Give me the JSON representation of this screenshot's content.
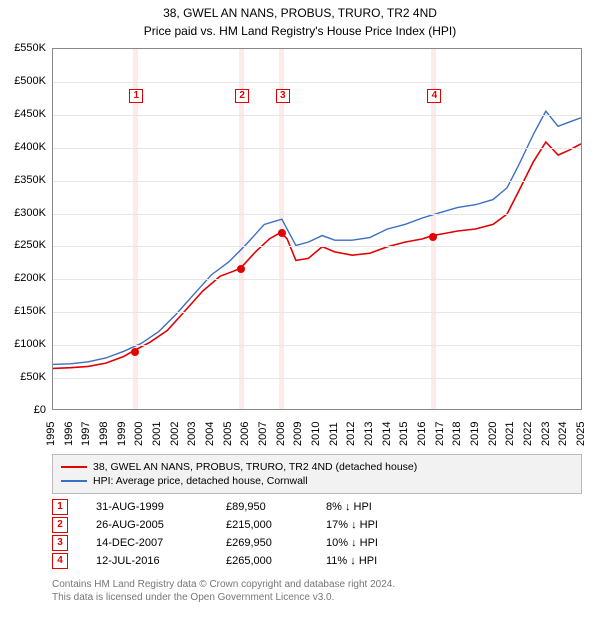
{
  "title1": "38, GWEL AN NANS, PROBUS, TRURO, TR2 4ND",
  "title2": "Price paid vs. HM Land Registry's House Price Index (HPI)",
  "chart": {
    "type": "line",
    "x_min": 1995,
    "x_max": 2025,
    "y_min": 0,
    "y_max": 550000,
    "y_ticks": [
      0,
      50000,
      100000,
      150000,
      200000,
      250000,
      300000,
      350000,
      400000,
      450000,
      500000,
      550000
    ],
    "y_tick_labels": [
      "£0",
      "£50K",
      "£100K",
      "£150K",
      "£200K",
      "£250K",
      "£300K",
      "£350K",
      "£400K",
      "£450K",
      "£500K",
      "£550K"
    ],
    "x_ticks": [
      1995,
      1996,
      1997,
      1998,
      1999,
      2000,
      2001,
      2002,
      2003,
      2004,
      2005,
      2006,
      2007,
      2008,
      2009,
      2010,
      2011,
      2012,
      2013,
      2014,
      2015,
      2016,
      2017,
      2018,
      2019,
      2020,
      2021,
      2022,
      2023,
      2024,
      2025
    ],
    "background_color": "#ffffff",
    "grid_color": "#e6e6e6",
    "border_color": "#888888",
    "label_fontsize": 11,
    "series": [
      {
        "name": "prop",
        "label": "38, GWEL AN NANS, PROBUS, TRURO, TR2 4ND (detached house)",
        "color": "#e30000",
        "line_width": 1.6,
        "data": [
          [
            1995,
            62000
          ],
          [
            1996,
            63000
          ],
          [
            1997,
            65000
          ],
          [
            1998,
            70000
          ],
          [
            1999,
            80000
          ],
          [
            1999.66,
            89950
          ],
          [
            2000.5,
            102000
          ],
          [
            2001.5,
            120000
          ],
          [
            2002.5,
            150000
          ],
          [
            2003.5,
            180000
          ],
          [
            2004.5,
            203000
          ],
          [
            2005.2,
            210000
          ],
          [
            2005.65,
            215000
          ],
          [
            2006.5,
            240000
          ],
          [
            2007.3,
            260000
          ],
          [
            2007.95,
            269950
          ],
          [
            2008.3,
            260000
          ],
          [
            2008.8,
            227000
          ],
          [
            2009.5,
            230000
          ],
          [
            2010.3,
            248000
          ],
          [
            2011.0,
            240000
          ],
          [
            2012.0,
            235000
          ],
          [
            2013.0,
            238000
          ],
          [
            2014.0,
            248000
          ],
          [
            2015.0,
            255000
          ],
          [
            2016.0,
            260000
          ],
          [
            2016.53,
            265000
          ],
          [
            2017.0,
            267000
          ],
          [
            2018.0,
            272000
          ],
          [
            2019.0,
            275000
          ],
          [
            2020.0,
            282000
          ],
          [
            2020.8,
            298000
          ],
          [
            2021.5,
            335000
          ],
          [
            2022.3,
            378000
          ],
          [
            2023.0,
            408000
          ],
          [
            2023.7,
            388000
          ],
          [
            2024.3,
            395000
          ],
          [
            2025.0,
            405000
          ]
        ]
      },
      {
        "name": "hpi",
        "label": "HPI: Average price, detached house, Cornwall",
        "color": "#3b6fc4",
        "line_width": 1.4,
        "data": [
          [
            1995,
            68000
          ],
          [
            1996,
            69000
          ],
          [
            1997,
            72000
          ],
          [
            1998,
            78000
          ],
          [
            1999,
            88000
          ],
          [
            2000,
            100000
          ],
          [
            2001,
            118000
          ],
          [
            2002,
            145000
          ],
          [
            2003,
            175000
          ],
          [
            2004,
            205000
          ],
          [
            2005,
            225000
          ],
          [
            2006,
            252000
          ],
          [
            2007,
            282000
          ],
          [
            2008.0,
            290000
          ],
          [
            2008.8,
            250000
          ],
          [
            2009.5,
            255000
          ],
          [
            2010.3,
            265000
          ],
          [
            2011.0,
            258000
          ],
          [
            2012.0,
            258000
          ],
          [
            2013.0,
            262000
          ],
          [
            2014.0,
            275000
          ],
          [
            2015.0,
            282000
          ],
          [
            2016.0,
            292000
          ],
          [
            2017.0,
            300000
          ],
          [
            2018.0,
            308000
          ],
          [
            2019.0,
            312000
          ],
          [
            2020.0,
            320000
          ],
          [
            2020.8,
            338000
          ],
          [
            2021.5,
            375000
          ],
          [
            2022.3,
            420000
          ],
          [
            2023.0,
            455000
          ],
          [
            2023.7,
            432000
          ],
          [
            2024.3,
            438000
          ],
          [
            2025.0,
            445000
          ]
        ]
      }
    ],
    "event_bands": [
      {
        "x": 1999.66,
        "width_years": 0.15
      },
      {
        "x": 2005.65,
        "width_years": 0.15
      },
      {
        "x": 2007.95,
        "width_years": 0.15
      },
      {
        "x": 2016.53,
        "width_years": 0.15
      }
    ],
    "event_band_color": "rgba(255,170,170,0.25)",
    "markers": [
      {
        "n": 1,
        "x": 1999.66,
        "y": 89950,
        "label_y": 480000,
        "color": "#e30000"
      },
      {
        "n": 2,
        "x": 2005.65,
        "y": 215000,
        "label_y": 480000,
        "color": "#e30000"
      },
      {
        "n": 3,
        "x": 2007.95,
        "y": 269950,
        "label_y": 480000,
        "color": "#e30000"
      },
      {
        "n": 4,
        "x": 2016.53,
        "y": 265000,
        "label_y": 480000,
        "color": "#e30000"
      }
    ],
    "marker_box_border": "#e30000",
    "marker_dot_color": "#e30000"
  },
  "legend": {
    "background": "#f2f2f2",
    "border": "#bbbbbb"
  },
  "transactions": [
    {
      "n": 1,
      "date": "31-AUG-1999",
      "price": "£89,950",
      "pct": "8%",
      "dir": "↓",
      "suffix": "HPI",
      "color": "#e30000"
    },
    {
      "n": 2,
      "date": "26-AUG-2005",
      "price": "£215,000",
      "pct": "17%",
      "dir": "↓",
      "suffix": "HPI",
      "color": "#e30000"
    },
    {
      "n": 3,
      "date": "14-DEC-2007",
      "price": "£269,950",
      "pct": "10%",
      "dir": "↓",
      "suffix": "HPI",
      "color": "#e30000"
    },
    {
      "n": 4,
      "date": "12-JUL-2016",
      "price": "£265,000",
      "pct": "11%",
      "dir": "↓",
      "suffix": "HPI",
      "color": "#e30000"
    }
  ],
  "footnote1": "Contains HM Land Registry data © Crown copyright and database right 2024.",
  "footnote2": "This data is licensed under the Open Government Licence v3.0."
}
